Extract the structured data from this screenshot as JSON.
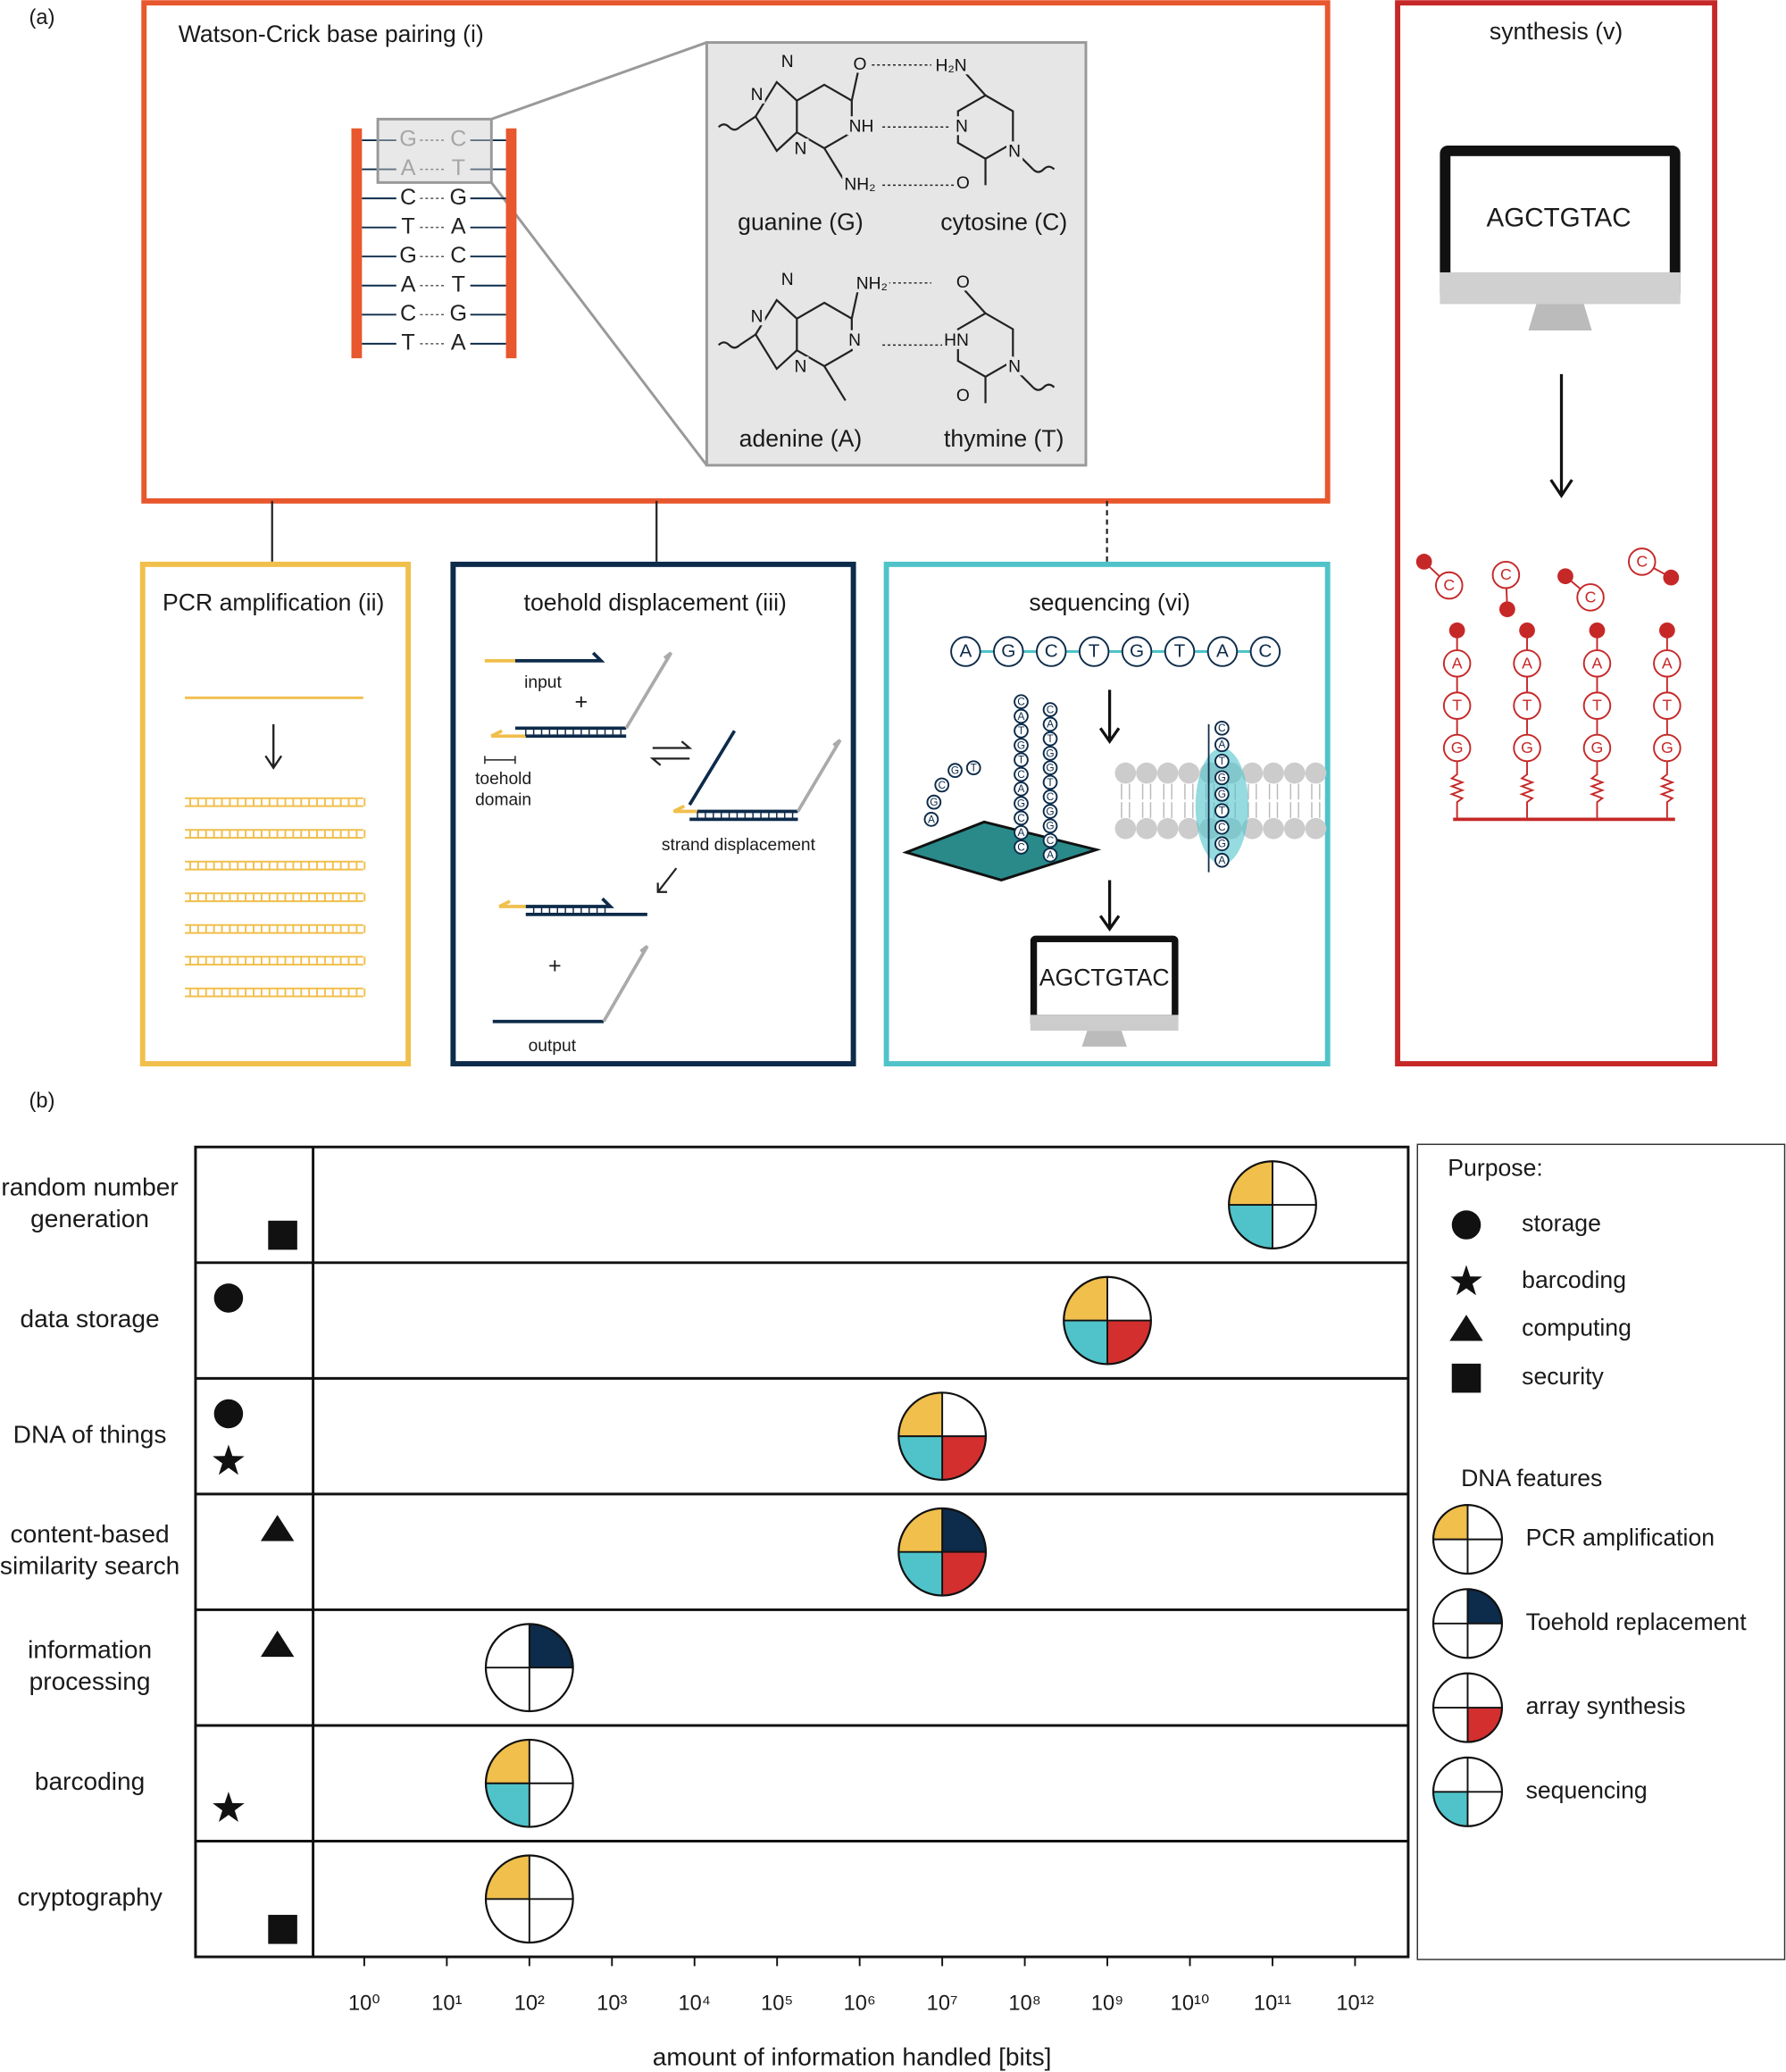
{
  "panel_a": {
    "label": "(a)",
    "base_pairing": {
      "title": "Watson-Crick base pairing (i)",
      "pairs": [
        [
          "G",
          "C"
        ],
        [
          "A",
          "T"
        ],
        [
          "C",
          "G"
        ],
        [
          "T",
          "A"
        ],
        [
          "G",
          "C"
        ],
        [
          "A",
          "T"
        ],
        [
          "C",
          "G"
        ],
        [
          "T",
          "A"
        ]
      ],
      "atoms": [
        "N",
        "N",
        "N",
        "O",
        "NH",
        "NH₂",
        "H₂N",
        "N",
        "O",
        "N",
        "N",
        "N",
        "N",
        "N",
        "NH₂",
        "O",
        "HN",
        "N",
        "O"
      ],
      "names": [
        "guanine (G)",
        "cytosine (C)",
        "adenine (A)",
        "thymine (T)"
      ]
    },
    "pcr": {
      "title": "PCR amplification (ii)"
    },
    "toehold": {
      "title": "toehold displacement (iii)",
      "input": "input",
      "plus": "+",
      "toehold_domain": "toehold domain",
      "strand_displacement": "strand displacement",
      "output": "output"
    },
    "sequencing": {
      "title": "sequencing (vi)",
      "sequence": [
        "A",
        "G",
        "C",
        "T",
        "G",
        "T",
        "A",
        "C"
      ],
      "strands": [
        "CATGTCAGCAC",
        "CATGGTCGGCA",
        "TGCGA",
        "CATGGTCGA"
      ],
      "readout": "AGCTGTAC"
    },
    "synthesis": {
      "title": "synthesis (v)",
      "screen": "AGCTGTAC",
      "strand": [
        "A",
        "T",
        "G"
      ],
      "free": "C"
    }
  },
  "panel_b_label": "(b)",
  "chart_data": {
    "type": "pie-position",
    "x_label": "amount of information handled [bits]",
    "log_x": true,
    "xlim": [
      0.24,
      4400000000000.0
    ],
    "xticks": [
      {
        "value": 1,
        "label": "10⁰"
      },
      {
        "value": 10,
        "label": "10¹"
      },
      {
        "value": 100,
        "label": "10²"
      },
      {
        "value": 1000,
        "label": "10³"
      },
      {
        "value": 10000,
        "label": "10⁴"
      },
      {
        "value": 100000,
        "label": "10⁵"
      },
      {
        "value": 1000000,
        "label": "10⁶"
      },
      {
        "value": 10000000,
        "label": "10⁷"
      },
      {
        "value": 100000000,
        "label": "10⁸"
      },
      {
        "value": 1000000000,
        "label": "10⁹"
      },
      {
        "value": 10000000000,
        "label": "10¹⁰"
      },
      {
        "value": 100000000000,
        "label": "10¹¹"
      },
      {
        "value": 1000000000000,
        "label": "10¹²"
      }
    ],
    "categories": [
      "random number generation",
      "data storage",
      "DNA of things",
      "content-based similarity search",
      "information processing",
      "barcoding",
      "cryptography"
    ],
    "values": [
      100000000000,
      1000000000,
      10000000,
      10000000,
      100,
      100,
      100
    ],
    "purpose_title": "Purpose:",
    "purposes": [
      {
        "name": "storage",
        "marker": "circle"
      },
      {
        "name": "barcoding",
        "marker": "star"
      },
      {
        "name": "computing",
        "marker": "triangle"
      },
      {
        "name": "security",
        "marker": "square"
      }
    ],
    "row_purposes": [
      [
        false,
        false,
        false,
        true
      ],
      [
        true,
        false,
        false,
        false
      ],
      [
        true,
        true,
        false,
        false
      ],
      [
        false,
        false,
        true,
        false
      ],
      [
        false,
        false,
        true,
        false
      ],
      [
        false,
        true,
        false,
        false
      ],
      [
        false,
        false,
        false,
        true
      ]
    ],
    "feature_title": "DNA features",
    "features": [
      {
        "name": "PCR amplification",
        "color": "#f0bf4c"
      },
      {
        "name": "Toehold replacement",
        "color": "#0d2b4a"
      },
      {
        "name": "array synthesis",
        "color": "#d32f2f"
      },
      {
        "name": "sequencing",
        "color": "#4fc3c9"
      }
    ],
    "row_features": [
      [
        true,
        false,
        false,
        true
      ],
      [
        true,
        false,
        true,
        true
      ],
      [
        true,
        false,
        true,
        true
      ],
      [
        true,
        true,
        true,
        true
      ],
      [
        false,
        true,
        false,
        false
      ],
      [
        true,
        false,
        false,
        true
      ],
      [
        true,
        false,
        false,
        false
      ]
    ]
  }
}
